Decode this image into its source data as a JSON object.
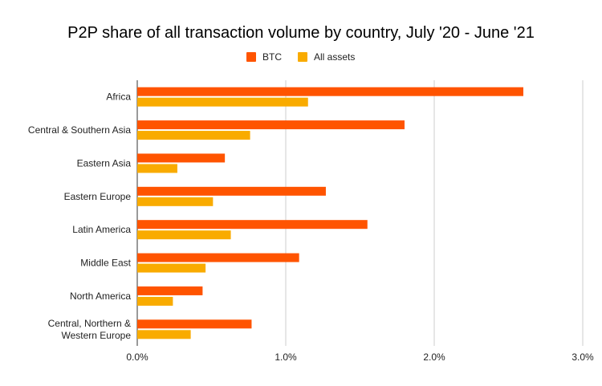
{
  "chart_data": {
    "type": "bar",
    "orientation": "horizontal",
    "title": "P2P share of all transaction volume by country, July '20 - June '21",
    "xlabel": "",
    "ylabel": "",
    "categories": [
      "Africa",
      "Central & Southern Asia",
      "Eastern Asia",
      "Eastern Europe",
      "Latin America",
      "Middle East",
      "North America",
      "Central, Northern & Western Europe"
    ],
    "category_lines": [
      [
        "Africa"
      ],
      [
        "Central & Southern Asia"
      ],
      [
        "Eastern Asia"
      ],
      [
        "Eastern Europe"
      ],
      [
        "Latin America"
      ],
      [
        "Middle East"
      ],
      [
        "North America"
      ],
      [
        "Central, Northern &",
        "Western Europe"
      ]
    ],
    "series": [
      {
        "name": "BTC",
        "color": "#ff5400",
        "values": [
          2.6,
          1.8,
          0.59,
          1.27,
          1.55,
          1.09,
          0.44,
          0.77
        ]
      },
      {
        "name": "All assets",
        "color": "#f9ab00",
        "values": [
          1.15,
          0.76,
          0.27,
          0.51,
          0.63,
          0.46,
          0.24,
          0.36
        ]
      }
    ],
    "xlim": [
      0,
      3.0
    ],
    "xticks": [
      0,
      1.0,
      2.0,
      3.0
    ],
    "xtick_labels": [
      "0.0%",
      "1.0%",
      "2.0%",
      "3.0%"
    ],
    "unit": "%",
    "grid": true,
    "legend_position": "top"
  }
}
